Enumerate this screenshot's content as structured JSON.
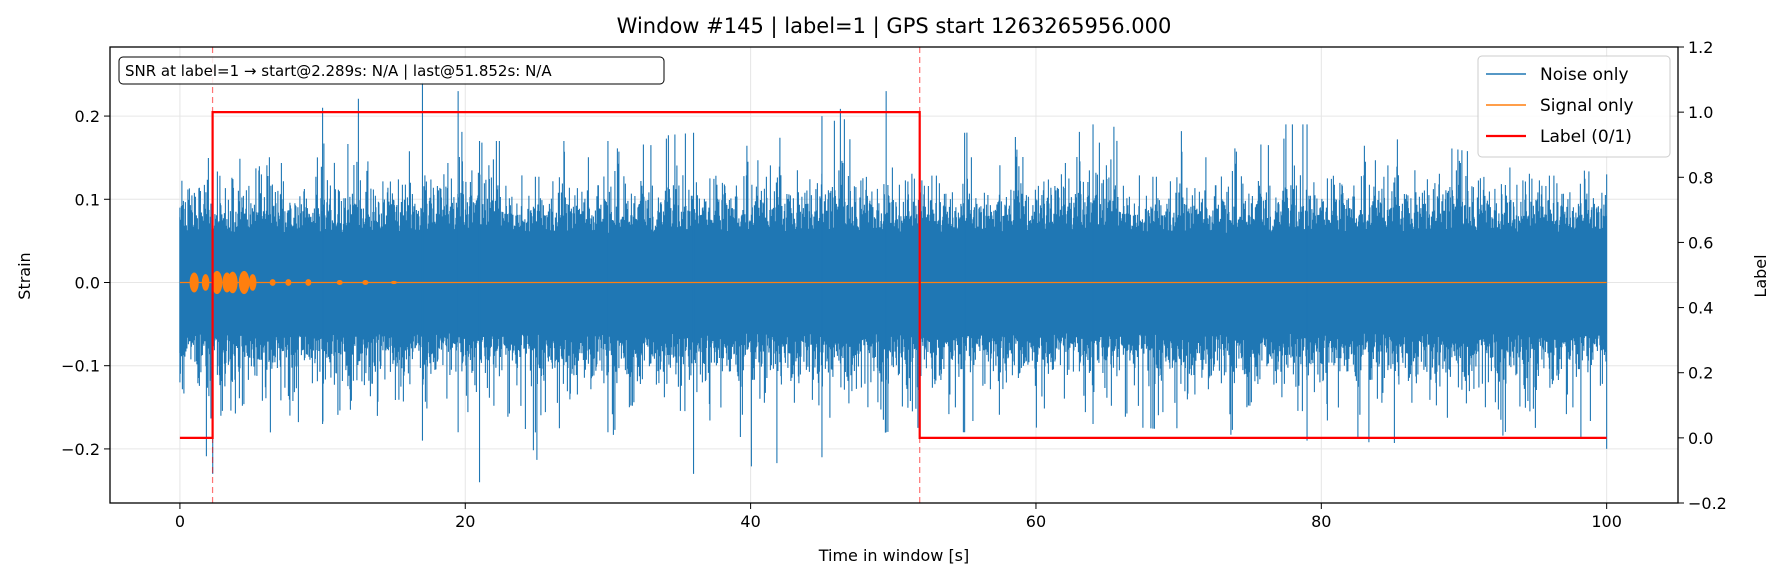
{
  "chart_data": {
    "type": "line",
    "title": "Window #145  |  label=1  |  GPS start 1263265956.000",
    "xlabel": "Time in window [s]",
    "ylabel": "Strain",
    "y2label": "Label",
    "xlim": [
      -4.9,
      105
    ],
    "ylim": [
      -0.265,
      0.283
    ],
    "y2lim": [
      -0.2,
      1.2
    ],
    "x_ticks": [
      0,
      20,
      40,
      60,
      80,
      100
    ],
    "y_ticks": [
      -0.2,
      -0.1,
      0.0,
      0.1,
      0.2
    ],
    "y2_ticks": [
      -0.2,
      0.0,
      0.2,
      0.4,
      0.6,
      0.8,
      1.0,
      1.2
    ],
    "x_tick_labels": [
      "0",
      "20",
      "40",
      "60",
      "80",
      "100"
    ],
    "y_tick_labels": [
      "−0.2",
      "−0.1",
      "0.0",
      "0.1",
      "0.2"
    ],
    "y2_tick_labels": [
      "−0.2",
      "0.0",
      "0.2",
      "0.4",
      "0.6",
      "0.8",
      "1.0",
      "1.2"
    ],
    "grid": true,
    "legend_position": "top-right",
    "annotation": "SNR at label=1 → start@2.289s: N/A | last@51.852s: N/A",
    "vlines": [
      2.289,
      51.852
    ],
    "series": [
      {
        "name": "Noise only",
        "color": "#1f77b4",
        "axis": "left",
        "x_range": [
          0,
          100
        ],
        "envelope_note": "dense noise, mostly within ±0.15 with spikes",
        "envelope": [
          {
            "x": 0,
            "min": -0.12,
            "max": 0.09
          },
          {
            "x": 2.3,
            "min": -0.23,
            "max": 0.13
          },
          {
            "x": 10,
            "min": -0.17,
            "max": 0.21
          },
          {
            "x": 17,
            "min": -0.19,
            "max": 0.24
          },
          {
            "x": 19.5,
            "min": -0.18,
            "max": 0.23
          },
          {
            "x": 21,
            "min": -0.24,
            "max": 0.17
          },
          {
            "x": 30,
            "min": -0.18,
            "max": 0.17
          },
          {
            "x": 36,
            "min": -0.23,
            "max": 0.18
          },
          {
            "x": 45,
            "min": -0.21,
            "max": 0.2
          },
          {
            "x": 49.5,
            "min": -0.18,
            "max": 0.23
          },
          {
            "x": 55,
            "min": -0.18,
            "max": 0.18
          },
          {
            "x": 64,
            "min": -0.17,
            "max": 0.19
          },
          {
            "x": 79,
            "min": -0.19,
            "max": 0.19
          },
          {
            "x": 100,
            "min": -0.2,
            "max": 0.13
          }
        ]
      },
      {
        "name": "Signal only",
        "color": "#ff7f0e",
        "axis": "left",
        "bursts": [
          {
            "x": 1.0,
            "amp": 0.012
          },
          {
            "x": 1.8,
            "amp": 0.01
          },
          {
            "x": 2.6,
            "amp": 0.014
          },
          {
            "x": 3.3,
            "amp": 0.012
          },
          {
            "x": 3.7,
            "amp": 0.013
          },
          {
            "x": 4.5,
            "amp": 0.014
          },
          {
            "x": 5.1,
            "amp": 0.01
          },
          {
            "x": 6.5,
            "amp": 0.004
          },
          {
            "x": 7.6,
            "amp": 0.004
          },
          {
            "x": 9.0,
            "amp": 0.004
          },
          {
            "x": 11.2,
            "amp": 0.003
          },
          {
            "x": 13.0,
            "amp": 0.003
          },
          {
            "x": 15.0,
            "amp": 0.002
          }
        ]
      },
      {
        "name": "Label (0/1)",
        "color": "#ff0000",
        "axis": "right",
        "x": [
          0,
          2.289,
          2.289,
          51.852,
          51.852,
          100
        ],
        "y": [
          0,
          0,
          1,
          1,
          0,
          0
        ]
      }
    ]
  }
}
